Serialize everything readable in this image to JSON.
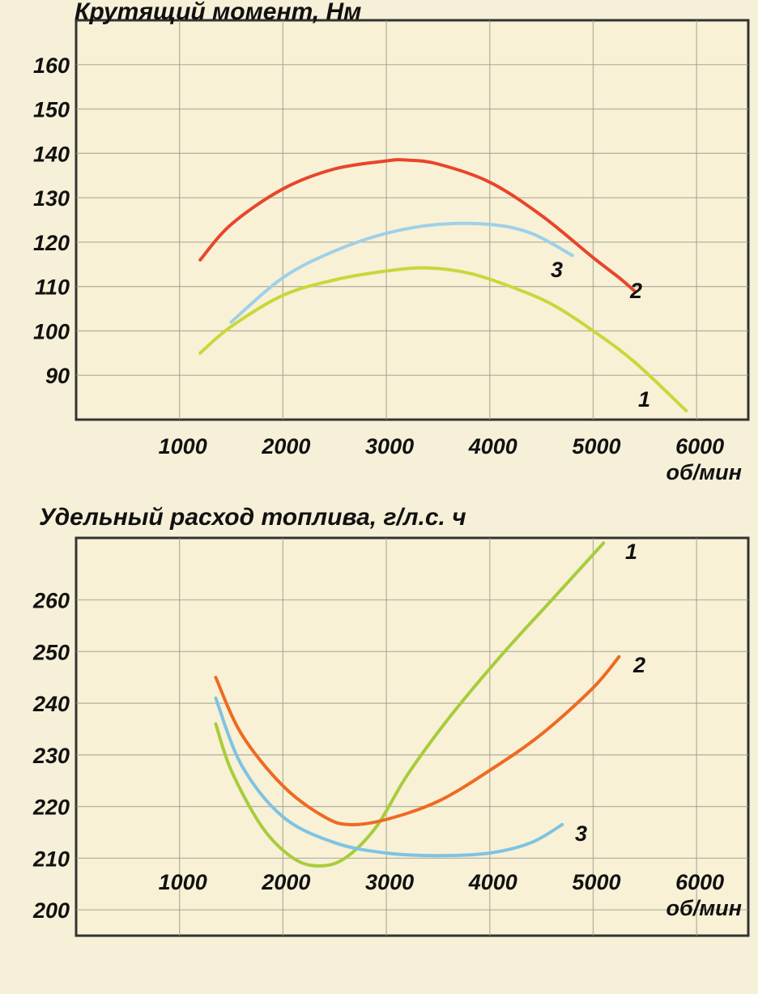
{
  "chart_data": [
    {
      "type": "line",
      "title": "Крутящий момент, Нм",
      "xlabel": "об/мин",
      "ylabel": "",
      "xlim": [
        0,
        6500
      ],
      "ylim": [
        80,
        170
      ],
      "x_ticks": [
        1000,
        2000,
        3000,
        4000,
        5000,
        6000
      ],
      "y_ticks": [
        90,
        100,
        110,
        120,
        130,
        140,
        150,
        160
      ],
      "grid": true,
      "colors": {
        "1": "#c8d83a",
        "2": "#e8452a",
        "3": "#9fd0e8"
      },
      "series": [
        {
          "name": "1",
          "x": [
            1200,
            1500,
            2000,
            2500,
            3000,
            3400,
            3800,
            4200,
            4600,
            5000,
            5400,
            5900
          ],
          "y": [
            95,
            101,
            108,
            111.5,
            113.5,
            114.2,
            113,
            110,
            106,
            100,
            93,
            82
          ]
        },
        {
          "name": "2",
          "x": [
            1200,
            1500,
            2000,
            2500,
            3000,
            3200,
            3500,
            4000,
            4500,
            5000,
            5250,
            5400
          ],
          "y": [
            116,
            124,
            132,
            136.5,
            138.3,
            138.5,
            137.6,
            133.5,
            126,
            116.5,
            112,
            109
          ]
        },
        {
          "name": "3",
          "x": [
            1500,
            2000,
            2500,
            3000,
            3500,
            4000,
            4400,
            4800
          ],
          "y": [
            102,
            112,
            118,
            122,
            124,
            124,
            122,
            117
          ]
        }
      ]
    },
    {
      "type": "line",
      "title": "Удельный расход топлива, г/л.с. ч",
      "xlabel": "об/мин",
      "ylabel": "",
      "xlim": [
        0,
        6500
      ],
      "ylim": [
        195,
        272
      ],
      "x_ticks": [
        1000,
        2000,
        3000,
        4000,
        5000,
        6000
      ],
      "y_ticks": [
        200,
        210,
        220,
        230,
        240,
        250,
        260
      ],
      "grid": true,
      "colors": {
        "1": "#a8cc3c",
        "2": "#ee6a22",
        "3": "#7ec3e3"
      },
      "series": [
        {
          "name": "1",
          "x": [
            1350,
            1500,
            1800,
            2100,
            2350,
            2600,
            2900,
            3200,
            3600,
            4100,
            4600,
            5100
          ],
          "y": [
            236,
            227,
            216,
            210,
            208.5,
            210,
            216,
            226,
            237,
            249,
            260,
            271
          ]
        },
        {
          "name": "2",
          "x": [
            1350,
            1600,
            2000,
            2400,
            2650,
            3000,
            3500,
            4000,
            4500,
            5000,
            5250
          ],
          "y": [
            245,
            234,
            224,
            218,
            216.5,
            217.5,
            221,
            227,
            234,
            243,
            249
          ]
        },
        {
          "name": "3",
          "x": [
            1350,
            1600,
            2000,
            2500,
            3000,
            3500,
            4000,
            4400,
            4700
          ],
          "y": [
            241,
            228,
            218,
            213,
            211,
            210.5,
            211,
            213,
            216.5
          ]
        }
      ]
    }
  ]
}
